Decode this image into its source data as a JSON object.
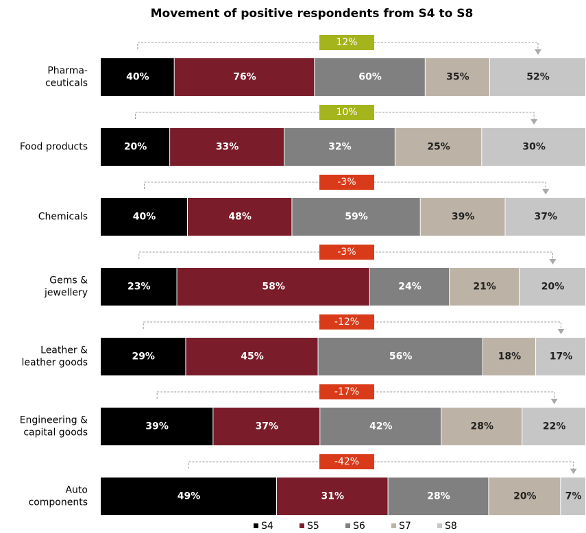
{
  "chart_data": {
    "type": "stacked-bar-100",
    "title": "Movement of positive respondents from S4 to S8",
    "categories": [
      "Pharma-\nceuticals",
      "Food products",
      "Chemicals",
      "Gems &\njewellery",
      "Leather &\nleather goods",
      "Engineering &\ncapital goods",
      "Auto\ncomponents"
    ],
    "series": [
      {
        "name": "S4",
        "color": "#000000",
        "values": [
          40,
          20,
          40,
          23,
          29,
          39,
          49
        ],
        "value_labels": [
          "40%",
          "20%",
          "40%",
          "23%",
          "29%",
          "39%",
          "49%"
        ]
      },
      {
        "name": "S5",
        "color": "#7a1c2a",
        "values": [
          76,
          33,
          48,
          58,
          45,
          37,
          31
        ],
        "value_labels": [
          "76%",
          "33%",
          "48%",
          "58%",
          "45%",
          "37%",
          "31%"
        ]
      },
      {
        "name": "S6",
        "color": "#808080",
        "values": [
          60,
          32,
          59,
          24,
          56,
          42,
          28
        ],
        "value_labels": [
          "60%",
          "32%",
          "59%",
          "24%",
          "56%",
          "42%",
          "28%"
        ]
      },
      {
        "name": "S7",
        "color": "#bcb3a6",
        "values": [
          35,
          25,
          39,
          21,
          18,
          28,
          20
        ],
        "value_labels": [
          "35%",
          "25%",
          "39%",
          "21%",
          "18%",
          "28%",
          "20%"
        ]
      },
      {
        "name": "S8",
        "color": "#c6c6c6",
        "values": [
          52,
          30,
          37,
          20,
          17,
          22,
          7
        ],
        "value_labels": [
          "52%",
          "30%",
          "37%",
          "20%",
          "17%",
          "22%",
          "7%"
        ]
      }
    ],
    "changes": {
      "values": [
        12,
        10,
        -3,
        -3,
        -12,
        -17,
        -42
      ],
      "value_labels": [
        "12%",
        "10%",
        "-3%",
        "-3%",
        "-12%",
        "-17%",
        "-42%"
      ]
    },
    "change_colors": {
      "positive": "#a4b41c",
      "negative": "#d93b1a"
    }
  }
}
